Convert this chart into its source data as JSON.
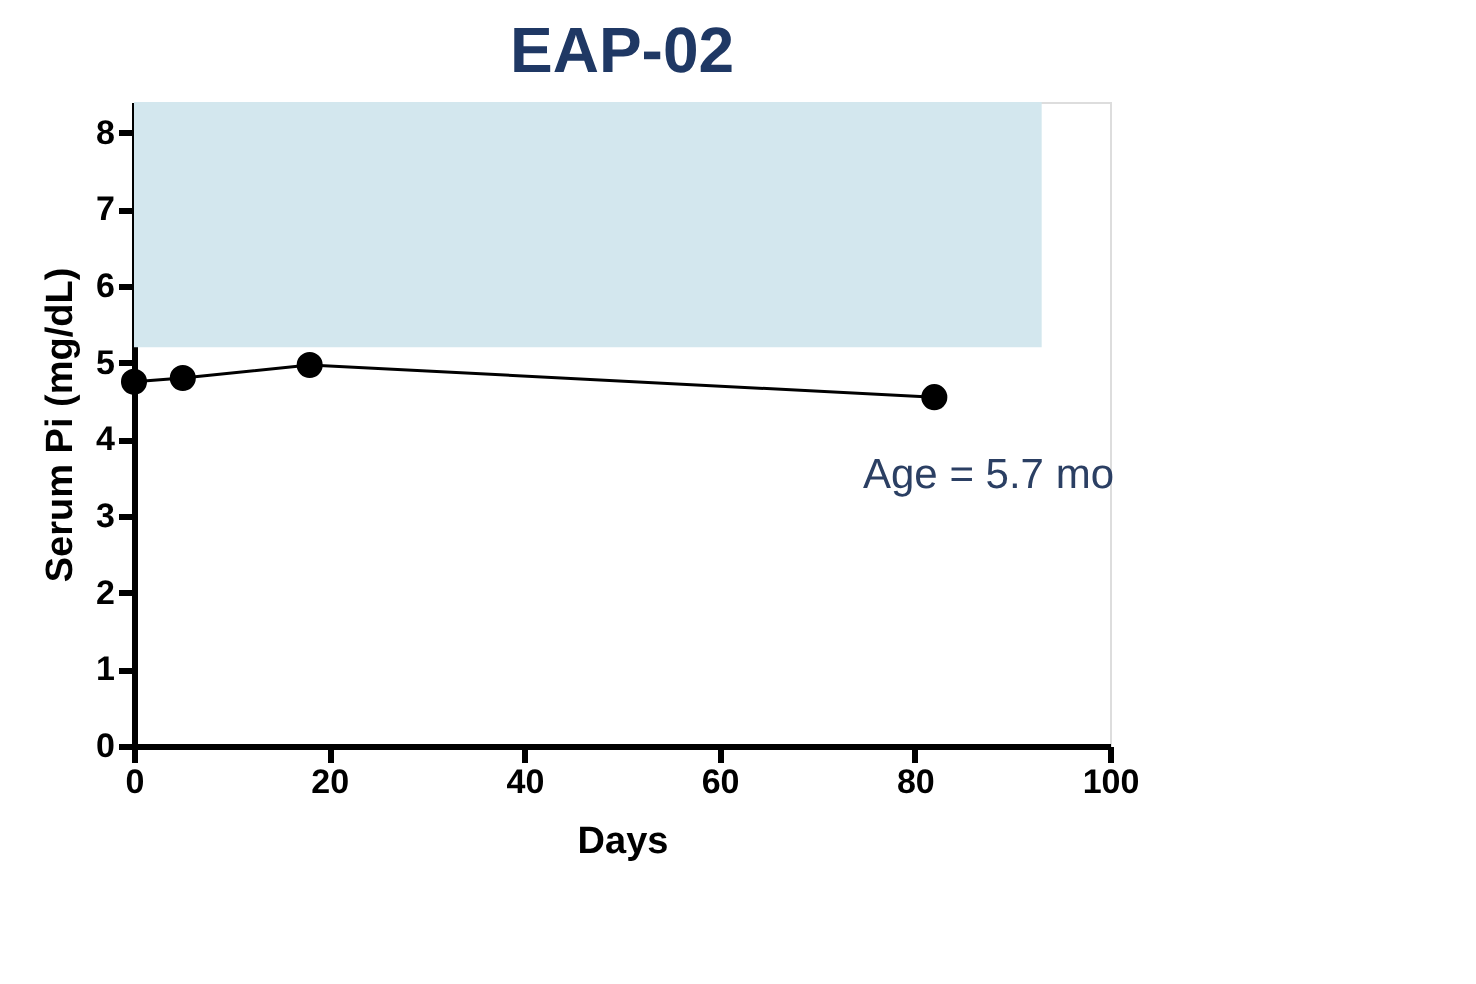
{
  "chart_data": {
    "type": "line",
    "title": "EAP-02",
    "xlabel": "Days",
    "ylabel": "Serum Pi (mg/dL)",
    "x": [
      0,
      5,
      18,
      82
    ],
    "series": [
      {
        "color": "#000000",
        "values": [
          4.75,
          4.8,
          4.97,
          4.55
        ]
      }
    ],
    "xlim": [
      0,
      100
    ],
    "xticks": [
      0,
      20,
      40,
      60,
      80,
      100
    ],
    "ylim": [
      0,
      8.4
    ],
    "yticks": [
      0,
      1,
      2,
      3,
      4,
      5,
      6,
      7,
      8
    ],
    "bands": [
      {
        "axis": "y",
        "from": 5.2,
        "to": 8.4,
        "color": "#d3e7ee"
      }
    ],
    "annotations": [
      "Age = 5.7 mo"
    ],
    "marker": "circle",
    "line_style": "solid",
    "grid": false
  }
}
